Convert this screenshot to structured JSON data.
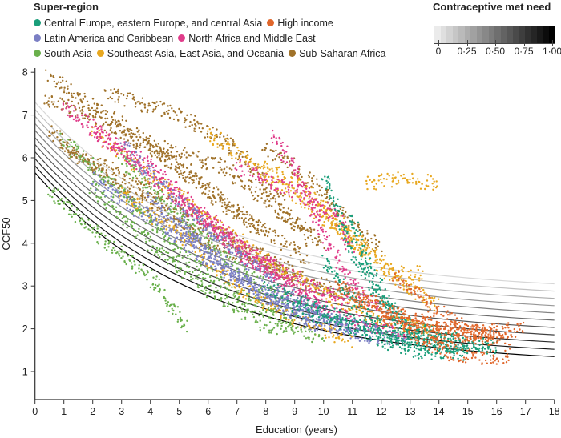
{
  "legend": {
    "title": "Super-region",
    "items": [
      {
        "name": "Central Europe, eastern Europe, and central Asia",
        "color": "#1a9e7a"
      },
      {
        "name": "High income",
        "color": "#e0662a"
      },
      {
        "name": "Latin America and Caribbean",
        "color": "#7b7fc4"
      },
      {
        "name": "North Africa and Middle East",
        "color": "#e03c8a"
      },
      {
        "name": "South Asia",
        "color": "#6ab04c"
      },
      {
        "name": "Southeast Asia, East Asia, and Oceania",
        "color": "#e8a820"
      },
      {
        "name": "Sub-Saharan Africa",
        "color": "#a0722a"
      }
    ]
  },
  "colorbar": {
    "title": "Contraceptive met need",
    "ticks": [
      "0",
      "0·25",
      "0·50",
      "0·75",
      "1·00"
    ],
    "range": [
      0,
      1
    ],
    "colors": [
      "#ffffff",
      "#000000"
    ]
  },
  "chart_data": {
    "type": "scatter",
    "xlabel": "Education (years)",
    "ylabel": "CCF50",
    "xlim": [
      0,
      18
    ],
    "ylim": [
      0.35,
      8.2
    ],
    "xticks": [
      "0",
      "1",
      "2",
      "3",
      "4",
      "5",
      "6",
      "7",
      "8",
      "9",
      "10",
      "11",
      "12",
      "13",
      "14",
      "15",
      "16",
      "17",
      "18"
    ],
    "yticks": [
      "1",
      "2",
      "3",
      "4",
      "5",
      "6",
      "7",
      "8"
    ],
    "grid": false,
    "legend_position": "top-left",
    "fitted_curves": [
      {
        "met_need": 0.0,
        "y_at_0": 7.3,
        "y_at_18": 3.05
      },
      {
        "met_need": 0.1,
        "y_at_0": 7.13,
        "y_at_18": 2.88
      },
      {
        "met_need": 0.2,
        "y_at_0": 6.97,
        "y_at_18": 2.71
      },
      {
        "met_need": 0.3,
        "y_at_0": 6.8,
        "y_at_18": 2.54
      },
      {
        "met_need": 0.4,
        "y_at_0": 6.64,
        "y_at_18": 2.37
      },
      {
        "met_need": 0.5,
        "y_at_0": 6.47,
        "y_at_18": 2.2
      },
      {
        "met_need": 0.6,
        "y_at_0": 6.31,
        "y_at_18": 2.03
      },
      {
        "met_need": 0.7,
        "y_at_0": 6.14,
        "y_at_18": 1.86
      },
      {
        "met_need": 0.8,
        "y_at_0": 5.98,
        "y_at_18": 1.69
      },
      {
        "met_need": 0.9,
        "y_at_0": 5.81,
        "y_at_18": 1.52
      },
      {
        "met_need": 1.0,
        "y_at_0": 5.65,
        "y_at_18": 1.35
      }
    ],
    "trajectories": [
      {
        "region": 6,
        "points": [
          [
            0.5,
            7.9
          ],
          [
            2,
            7.2
          ],
          [
            4,
            6.3
          ],
          [
            6,
            5.2
          ],
          [
            8,
            4.2
          ]
        ]
      },
      {
        "region": 6,
        "points": [
          [
            0.4,
            7.4
          ],
          [
            2.5,
            6.8
          ],
          [
            5,
            5.8
          ],
          [
            7.5,
            4.5
          ],
          [
            9.5,
            3.6
          ]
        ]
      },
      {
        "region": 6,
        "points": [
          [
            1,
            6.2
          ],
          [
            3,
            5.6
          ],
          [
            5,
            4.8
          ],
          [
            7,
            4.0
          ],
          [
            9,
            3.3
          ]
        ]
      },
      {
        "region": 6,
        "points": [
          [
            2.5,
            7.5
          ],
          [
            5,
            7.0
          ],
          [
            7,
            6.2
          ],
          [
            8.5,
            5.0
          ],
          [
            9.5,
            4.0
          ]
        ]
      },
      {
        "region": 6,
        "points": [
          [
            0.5,
            6.6
          ],
          [
            3,
            5.3
          ],
          [
            6,
            4.0
          ],
          [
            9,
            3.2
          ],
          [
            11,
            2.8
          ]
        ]
      },
      {
        "region": 6,
        "points": [
          [
            4,
            6.3
          ],
          [
            6.5,
            5.8
          ],
          [
            8,
            5.0
          ],
          [
            10,
            4.0
          ]
        ]
      },
      {
        "region": 6,
        "points": [
          [
            8,
            6.2
          ],
          [
            9,
            5.8
          ],
          [
            10.5,
            4.8
          ],
          [
            12,
            3.8
          ]
        ]
      },
      {
        "region": 5,
        "points": [
          [
            2,
            6.6
          ],
          [
            4,
            5.6
          ],
          [
            6,
            4.6
          ],
          [
            8,
            3.6
          ],
          [
            10,
            2.8
          ],
          [
            12,
            2.2
          ],
          [
            14,
            1.9
          ]
        ]
      },
      {
        "region": 5,
        "points": [
          [
            11.5,
            5.4
          ],
          [
            12.5,
            5.5
          ],
          [
            14,
            5.4
          ]
        ]
      },
      {
        "region": 5,
        "points": [
          [
            8,
            5.8
          ],
          [
            9.5,
            5.2
          ],
          [
            11,
            4.0
          ],
          [
            12.5,
            3.2
          ],
          [
            14,
            2.5
          ]
        ]
      },
      {
        "region": 5,
        "points": [
          [
            3,
            5.2
          ],
          [
            5,
            4.2
          ],
          [
            7,
            3.0
          ],
          [
            9,
            2.2
          ],
          [
            11,
            1.7
          ]
        ]
      },
      {
        "region": 5,
        "points": [
          [
            10,
            4.8
          ],
          [
            11.5,
            3.9
          ],
          [
            12.5,
            3.3
          ],
          [
            13.5,
            3.3
          ]
        ]
      },
      {
        "region": 5,
        "points": [
          [
            6,
            6.6
          ],
          [
            8,
            5.6
          ],
          [
            10,
            4.6
          ],
          [
            11.5,
            3.8
          ]
        ]
      },
      {
        "region": 4,
        "points": [
          [
            0.5,
            5.2
          ],
          [
            2,
            4.3
          ],
          [
            4,
            3.2
          ],
          [
            5.3,
            2.0
          ]
        ]
      },
      {
        "region": 4,
        "points": [
          [
            1,
            6.4
          ],
          [
            3,
            5.2
          ],
          [
            5,
            3.8
          ],
          [
            7,
            2.8
          ],
          [
            9,
            2.1
          ]
        ]
      },
      {
        "region": 4,
        "points": [
          [
            2,
            5.3
          ],
          [
            4,
            4.0
          ],
          [
            6,
            2.9
          ],
          [
            8,
            2.1
          ],
          [
            10,
            1.8
          ]
        ]
      },
      {
        "region": 4,
        "points": [
          [
            3,
            6.0
          ],
          [
            5,
            4.6
          ],
          [
            7,
            3.4
          ],
          [
            9,
            2.5
          ]
        ]
      },
      {
        "region": 3,
        "points": [
          [
            1,
            7.2
          ],
          [
            3,
            6.2
          ],
          [
            5,
            5.0
          ],
          [
            7,
            4.0
          ],
          [
            9,
            3.2
          ],
          [
            11,
            2.6
          ]
        ]
      },
      {
        "region": 3,
        "points": [
          [
            8.2,
            6.5
          ],
          [
            9,
            5.8
          ],
          [
            10,
            4.2
          ],
          [
            11,
            3.0
          ],
          [
            12,
            2.4
          ]
        ]
      },
      {
        "region": 3,
        "points": [
          [
            2,
            6.6
          ],
          [
            4,
            5.8
          ],
          [
            6,
            4.6
          ],
          [
            8,
            3.4
          ],
          [
            10,
            2.6
          ]
        ]
      },
      {
        "region": 3,
        "points": [
          [
            7,
            5.8
          ],
          [
            9,
            5.2
          ],
          [
            10.5,
            4.6
          ],
          [
            11,
            3.8
          ]
        ]
      },
      {
        "region": 3,
        "points": [
          [
            5,
            5.0
          ],
          [
            7,
            3.8
          ],
          [
            9,
            2.8
          ],
          [
            11,
            2.2
          ],
          [
            13,
            1.9
          ]
        ]
      },
      {
        "region": 2,
        "points": [
          [
            2,
            5.5
          ],
          [
            4,
            4.6
          ],
          [
            6,
            3.6
          ],
          [
            8,
            2.8
          ],
          [
            10,
            2.2
          ],
          [
            12,
            1.9
          ]
        ]
      },
      {
        "region": 2,
        "points": [
          [
            3,
            6.3
          ],
          [
            5,
            5.0
          ],
          [
            7,
            3.8
          ],
          [
            9,
            2.7
          ],
          [
            11,
            2.1
          ]
        ]
      },
      {
        "region": 2,
        "points": [
          [
            5,
            4.5
          ],
          [
            7,
            3.2
          ],
          [
            9,
            2.4
          ],
          [
            11,
            1.9
          ],
          [
            13,
            1.7
          ]
        ]
      },
      {
        "region": 2,
        "points": [
          [
            4,
            5.0
          ],
          [
            6,
            3.8
          ],
          [
            8,
            2.7
          ],
          [
            10,
            2.0
          ]
        ]
      },
      {
        "region": 0,
        "points": [
          [
            10,
            5.6
          ],
          [
            10.5,
            4.8
          ],
          [
            11,
            3.8
          ],
          [
            12,
            2.6
          ],
          [
            13,
            2.0
          ],
          [
            15,
            1.7
          ]
        ]
      },
      {
        "region": 0,
        "points": [
          [
            10,
            3.6
          ],
          [
            11,
            2.7
          ],
          [
            12,
            2.0
          ],
          [
            13.5,
            1.6
          ],
          [
            16,
            1.6
          ]
        ]
      },
      {
        "region": 0,
        "points": [
          [
            8,
            3.0
          ],
          [
            10,
            2.4
          ],
          [
            12,
            1.9
          ],
          [
            14,
            1.6
          ]
        ]
      },
      {
        "region": 0,
        "points": [
          [
            11,
            4.6
          ],
          [
            11.5,
            3.5
          ],
          [
            12.5,
            2.3
          ],
          [
            14,
            1.7
          ],
          [
            16,
            1.5
          ]
        ]
      },
      {
        "region": 0,
        "points": [
          [
            9,
            2.5
          ],
          [
            11,
            2.0
          ],
          [
            13,
            1.5
          ],
          [
            15,
            1.4
          ]
        ]
      },
      {
        "region": 1,
        "points": [
          [
            11,
            2.7
          ],
          [
            13,
            2.2
          ],
          [
            15,
            1.9
          ],
          [
            17,
            2.0
          ]
        ]
      },
      {
        "region": 1,
        "points": [
          [
            12,
            2.3
          ],
          [
            14,
            1.7
          ],
          [
            16,
            1.8
          ]
        ]
      },
      {
        "region": 1,
        "points": [
          [
            12.5,
            3.2
          ],
          [
            14,
            2.4
          ],
          [
            15.5,
            1.9
          ],
          [
            16.5,
            1.7
          ]
        ]
      },
      {
        "region": 1,
        "points": [
          [
            13,
            1.9
          ],
          [
            14.5,
            1.4
          ],
          [
            15.5,
            1.3
          ],
          [
            16.5,
            1.4
          ]
        ]
      },
      {
        "region": 1,
        "points": [
          [
            10.5,
            3.0
          ],
          [
            12,
            2.5
          ],
          [
            14,
            2.0
          ],
          [
            16,
            1.9
          ]
        ]
      }
    ]
  }
}
